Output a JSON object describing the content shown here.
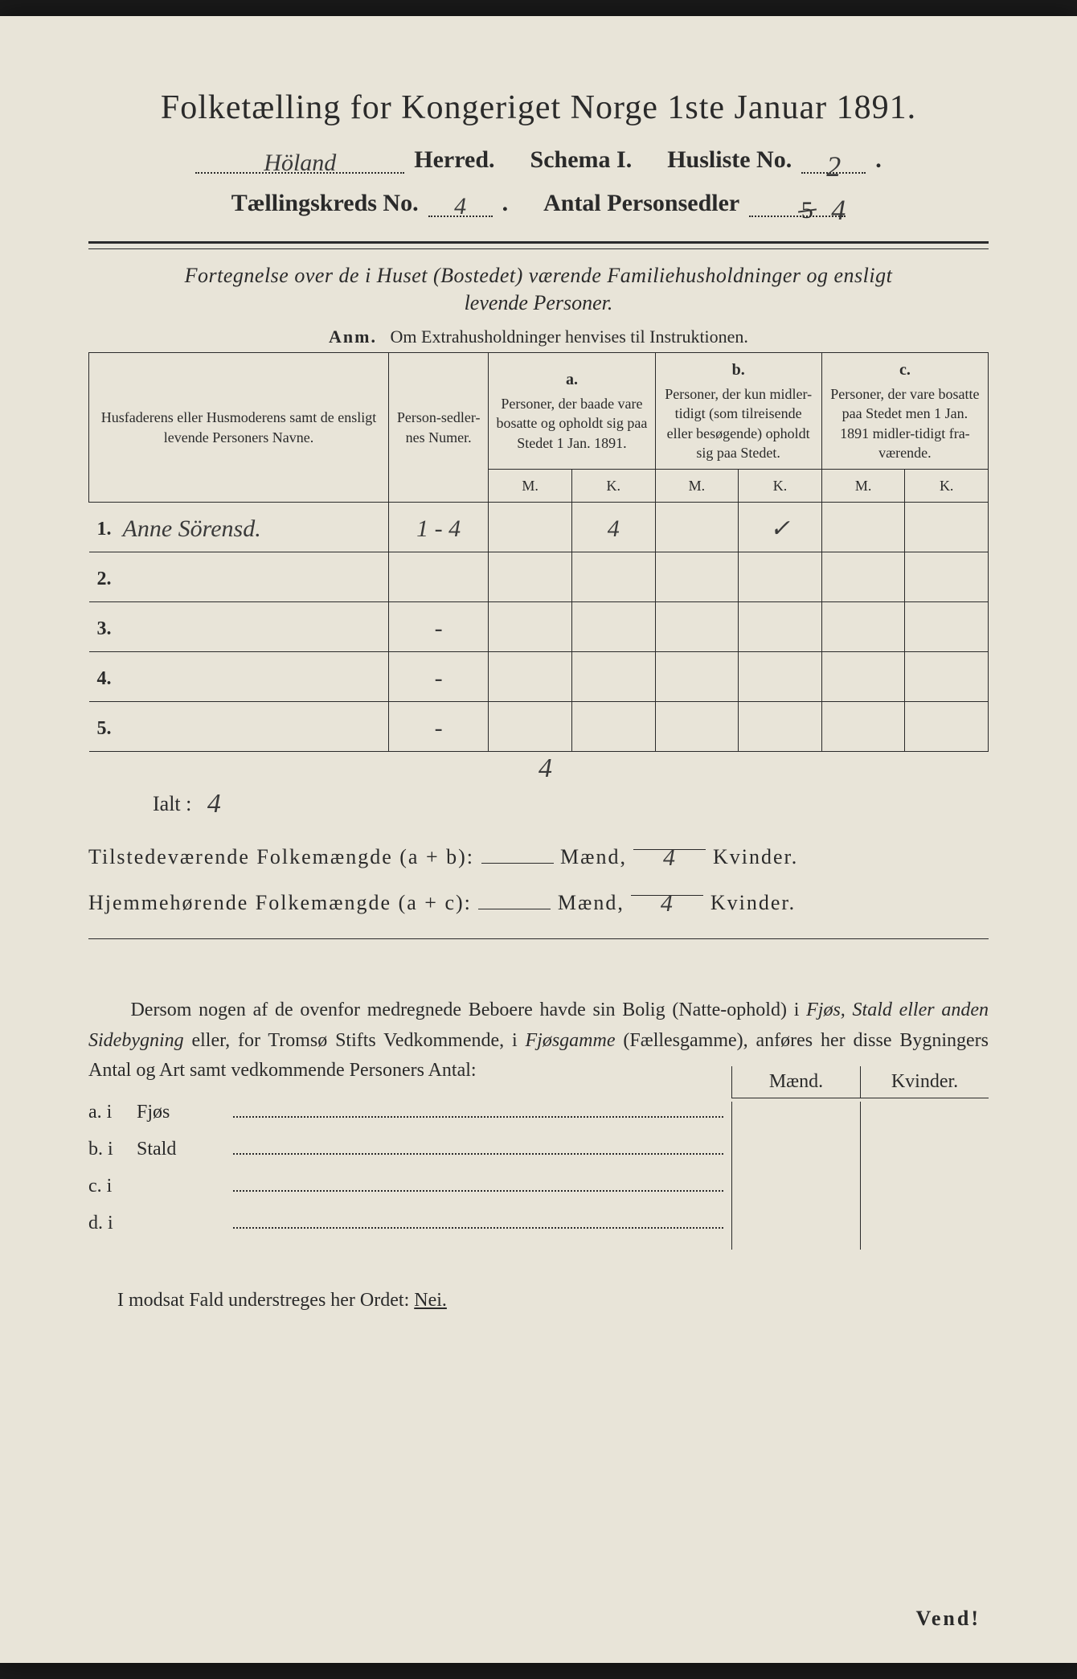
{
  "title": "Folketælling for Kongeriget Norge 1ste Januar 1891.",
  "line2": {
    "herred_value": "Höland",
    "herred_label": "Herred.",
    "schema_label": "Schema I.",
    "husliste_label": "Husliste No.",
    "husliste_value": "2",
    "husliste_dot": "."
  },
  "line3": {
    "kreds_label": "Tællingskreds No.",
    "kreds_value": "4",
    "kreds_dot": ".",
    "antal_label": "Antal Personsedler",
    "antal_struck": "5",
    "antal_value": "4"
  },
  "subtitle1": "Fortegnelse over de i Huset (Bostedet) værende Familiehusholdninger og ensligt",
  "subtitle2": "levende Personer.",
  "anm_b": "Anm.",
  "anm_rest": "Om Extrahusholdninger henvises til Instruktionen.",
  "table": {
    "col_name": "Husfaderens eller Husmoderens samt de ensligt levende Personers Navne.",
    "col_num": "Person-sedler-nes Numer.",
    "a": "a.",
    "a_txt": "Personer, der baade vare bosatte og opholdt sig paa Stedet 1 Jan. 1891.",
    "b": "b.",
    "b_txt": "Personer, der kun midler-tidigt (som tilreisende eller besøgende) opholdt sig paa Stedet.",
    "c": "c.",
    "c_txt": "Personer, der vare bosatte paa Stedet men 1 Jan. 1891 midler-tidigt fra-værende.",
    "M": "M.",
    "K": "K.",
    "rows": [
      {
        "n": "1.",
        "name": "Anne Sörensd.",
        "num": "1 - 4",
        "a_m": "",
        "a_k": "4",
        "b_m": "",
        "b_k": "✓",
        "c_m": "",
        "c_k": ""
      },
      {
        "n": "2.",
        "name": "",
        "num": "",
        "a_m": "",
        "a_k": "",
        "b_m": "",
        "b_k": "",
        "c_m": "",
        "c_k": ""
      },
      {
        "n": "3.",
        "name": "",
        "num": "-",
        "a_m": "",
        "a_k": "",
        "b_m": "",
        "b_k": "",
        "c_m": "",
        "c_k": ""
      },
      {
        "n": "4.",
        "name": "",
        "num": "-",
        "a_m": "",
        "a_k": "",
        "b_m": "",
        "b_k": "",
        "c_m": "",
        "c_k": ""
      },
      {
        "n": "5.",
        "name": "",
        "num": "-",
        "a_m": "",
        "a_k": "",
        "b_m": "",
        "b_k": "",
        "c_m": "",
        "c_k": ""
      }
    ],
    "sum_a_k": "4",
    "ialt_label": "Ialt :",
    "ialt_val": "4"
  },
  "totals": {
    "line1a": "Tilstedeværende Folkemængde (a + b):",
    "line2a": "Hjemmehørende Folkemængde (a + c):",
    "maend": "Mænd,",
    "kvinder": "Kvinder.",
    "v1": "4",
    "v2": "4"
  },
  "para": "Dersom nogen af de ovenfor medregnede Beboere havde sin Bolig (Natte-ophold) i Fjøs, Stald eller anden Sidebygning eller, for Tromsø Stifts Vedkommende, i Fjøsgamme (Fællesgamme), anføres her disse Bygningers Antal og Art samt vedkommende Personers Antal:",
  "bldg": {
    "maend": "Mænd.",
    "kvinder": "Kvinder.",
    "rows": [
      {
        "l": "a.  i",
        "w": "Fjøs"
      },
      {
        "l": "b.  i",
        "w": "Stald"
      },
      {
        "l": "c.  i",
        "w": ""
      },
      {
        "l": "d.  i",
        "w": ""
      }
    ]
  },
  "footer": {
    "text_a": "I modsat Fald understreges her Ordet:",
    "nei": "Nei."
  },
  "vend": "Vend!"
}
